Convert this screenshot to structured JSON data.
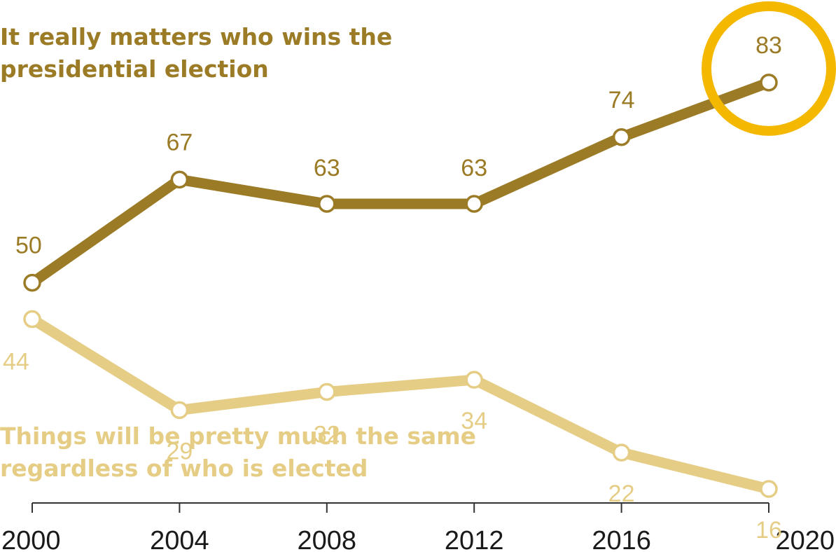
{
  "chart_data": {
    "type": "line",
    "x": [
      "2000",
      "2004",
      "2008",
      "2012",
      "2016",
      "2020"
    ],
    "series": [
      {
        "name": "It really matters who wins the presidential election",
        "name_lines": [
          "It really matters who wins the",
          "presidential election"
        ],
        "values": [
          50,
          67,
          63,
          63,
          74,
          83
        ],
        "color": "#9b7b25"
      },
      {
        "name": "Things will be pretty much the same regardless of who is elected",
        "name_lines": [
          "Things will be pretty much the same",
          "regardless of who is elected"
        ],
        "values": [
          44,
          29,
          32,
          34,
          22,
          16
        ],
        "color": "#e6cd86"
      }
    ],
    "highlight": {
      "series": 0,
      "index": 5,
      "color": "#f5b800"
    },
    "grid": false,
    "xlabel": "",
    "ylabel": ""
  }
}
